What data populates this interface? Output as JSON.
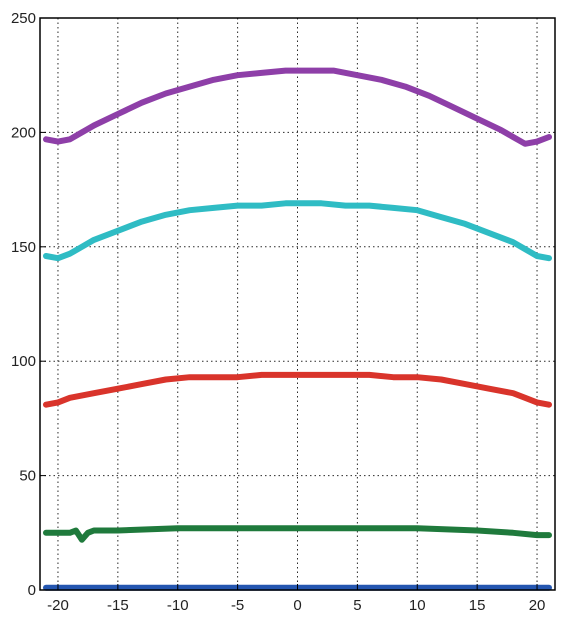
{
  "chart_data": {
    "type": "line",
    "title": "",
    "xlabel": "",
    "ylabel": "",
    "xlim": [
      -21.5,
      21.5
    ],
    "ylim": [
      0,
      250
    ],
    "xticks": [
      -20,
      -15,
      -10,
      -5,
      0,
      5,
      10,
      15,
      20
    ],
    "yticks": [
      0,
      50,
      100,
      150,
      200,
      250
    ],
    "grid": true,
    "legend": "none",
    "series": [
      {
        "color": "#8e3fa8",
        "x": [
          -21,
          -20,
          -19,
          -18,
          -17,
          -15,
          -13,
          -11,
          -9,
          -7,
          -5,
          -3,
          -1,
          0,
          2,
          3,
          5,
          7,
          9,
          11,
          13,
          15,
          17,
          18,
          19,
          20,
          21
        ],
        "y": [
          197,
          196,
          197,
          200,
          203,
          208,
          213,
          217,
          220,
          223,
          225,
          226,
          227,
          227,
          227,
          227,
          225,
          223,
          220,
          216,
          211,
          206,
          201,
          198,
          195,
          196,
          198
        ]
      },
      {
        "color": "#2fbcc4",
        "x": [
          -21,
          -20,
          -19,
          -18,
          -17,
          -15,
          -13,
          -11,
          -9,
          -7,
          -5,
          -3,
          -1,
          0,
          2,
          4,
          6,
          8,
          10,
          12,
          14,
          16,
          18,
          19,
          20,
          21
        ],
        "y": [
          146,
          145,
          147,
          150,
          153,
          157,
          161,
          164,
          166,
          167,
          168,
          168,
          169,
          169,
          169,
          168,
          168,
          167,
          166,
          163,
          160,
          156,
          152,
          149,
          146,
          145
        ]
      },
      {
        "color": "#d9342b",
        "x": [
          -21,
          -20,
          -19,
          -17,
          -15,
          -13,
          -11,
          -9,
          -7,
          -5,
          -3,
          -1,
          0,
          2,
          4,
          6,
          8,
          10,
          12,
          14,
          16,
          18,
          19,
          20,
          21
        ],
        "y": [
          81,
          82,
          84,
          86,
          88,
          90,
          92,
          93,
          93,
          93,
          94,
          94,
          94,
          94,
          94,
          94,
          93,
          93,
          92,
          90,
          88,
          86,
          84,
          82,
          81
        ]
      },
      {
        "color": "#1f7a3c",
        "x": [
          -21,
          -20,
          -19,
          -18.5,
          -18,
          -17.5,
          -17,
          -15,
          -10,
          -5,
          0,
          5,
          10,
          15,
          18,
          20,
          21
        ],
        "y": [
          25,
          25,
          25,
          26,
          22,
          25,
          26,
          26,
          27,
          27,
          27,
          27,
          27,
          26,
          25,
          24,
          24
        ]
      },
      {
        "color": "#2456b0",
        "x": [
          -21,
          -10,
          0,
          10,
          21
        ],
        "y": [
          1,
          1,
          1,
          1,
          1
        ]
      }
    ]
  }
}
